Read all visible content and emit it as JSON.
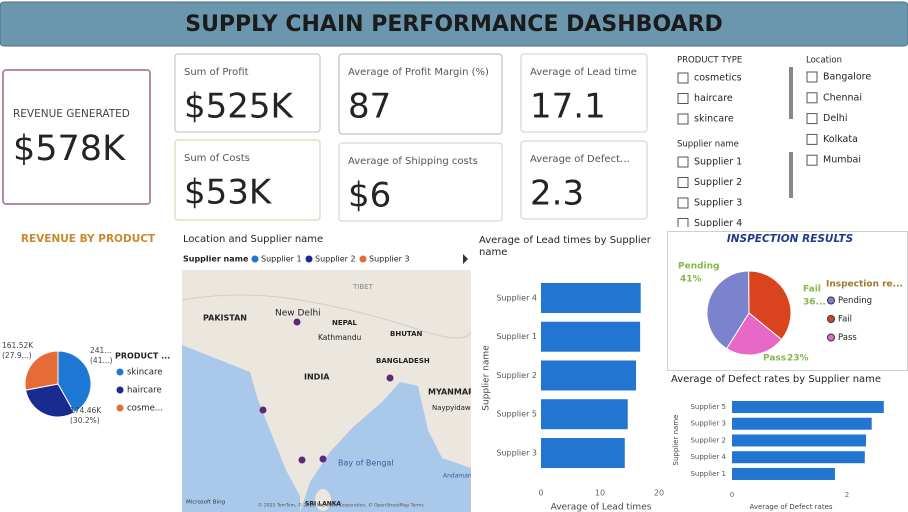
{
  "header": {
    "title": "SUPPLY CHAIN PERFORMANCE DASHBOARD"
  },
  "revenue_card": {
    "label": "REVENUE GENERATED",
    "value": "$578K"
  },
  "kpi_cards": [
    {
      "label": "Sum of Profit",
      "value": "$525K"
    },
    {
      "label": "Average of Profit Margin (%)",
      "value": "87"
    },
    {
      "label": "Average of Lead time",
      "value": "17.1"
    },
    {
      "label": "Sum of Costs",
      "value": "$53K"
    },
    {
      "label": "Average of Shipping costs",
      "value": "$6"
    },
    {
      "label": "Average of Defect…",
      "value": "2.3"
    }
  ],
  "slicers": [
    {
      "title": "PRODUCT TYPE",
      "items": [
        "cosmetics",
        "haircare",
        "skincare"
      ]
    },
    {
      "title": "Supplier name",
      "items": [
        "Supplier 1",
        "Supplier 2",
        "Supplier 3",
        "Supplier 4"
      ]
    },
    {
      "title": "Location",
      "items": [
        "Bangalore",
        "Chennai",
        "Delhi",
        "Kolkata",
        "Mumbai"
      ]
    }
  ],
  "map": {
    "title": "Location and Supplier name",
    "legend_title": "Supplier name",
    "legend": [
      {
        "name": "Supplier 1",
        "color": "#1f77d4"
      },
      {
        "name": "Supplier 2",
        "color": "#1a2b8f"
      },
      {
        "name": "Supplier 3",
        "color": "#e66c37"
      }
    ],
    "labels": [
      "PAKISTAN",
      "New Delhi",
      "NEPAL",
      "TIBET",
      "Kathmandu",
      "BHUTAN",
      "BANGLADESH",
      "INDIA",
      "MYANMAR",
      "Naypyidaw",
      "Bay of Bengal",
      "Andaman Sea",
      "SRI LANKA",
      "Microsoft Bing",
      "© 2025 TomTom, © 2025 Microsoft Corporation, © OpenStreetMap Terms"
    ]
  },
  "chart_data": [
    {
      "type": "pie",
      "title": "REVENUE BY PRODUCT",
      "categories": [
        "skincare",
        "haircare",
        "cosme..."
      ],
      "values": [
        241.6,
        174.46,
        161.52
      ],
      "value_labels": [
        "241... (41...)",
        "174.46K (30.2%)",
        "161.52K (27.9...)"
      ],
      "colors": [
        "#1f77d4",
        "#1a2b8f",
        "#e66c37"
      ],
      "legend_title": "PRODUCT ..."
    },
    {
      "type": "hbar",
      "title": "Average of Lead times by Supplier name",
      "categories": [
        "Supplier 4",
        "Supplier 1",
        "Supplier 2",
        "Supplier 5",
        "Supplier 3"
      ],
      "values": [
        16.9,
        16.8,
        16.1,
        14.7,
        14.2
      ],
      "color": "#2276d2",
      "xlim": [
        0,
        21
      ],
      "xticks": [
        0,
        10,
        20
      ],
      "xlabel": "Average of Lead times",
      "ylabel": "Supplier name"
    },
    {
      "type": "pie",
      "title": "INSPECTION RESULTS",
      "categories": [
        "Pending",
        "Fail",
        "Pass"
      ],
      "values": [
        41,
        36,
        23
      ],
      "value_labels": [
        "41%",
        "36...",
        "23%"
      ],
      "colors": [
        "#7b83cf",
        "#d9431e",
        "#e868c8"
      ],
      "legend_title": "Inspection re..."
    },
    {
      "type": "hbar",
      "title": "Average of Defect rates by Supplier name",
      "categories": [
        "Supplier 5",
        "Supplier 3",
        "Supplier 2",
        "Supplier 4",
        "Supplier 1"
      ],
      "values": [
        2.64,
        2.43,
        2.33,
        2.31,
        1.79
      ],
      "color": "#2276d2",
      "xlim": [
        0,
        2.8
      ],
      "xticks": [
        0,
        2
      ],
      "xlabel": "Average of Defect rates",
      "ylabel": "Supplier name"
    }
  ]
}
